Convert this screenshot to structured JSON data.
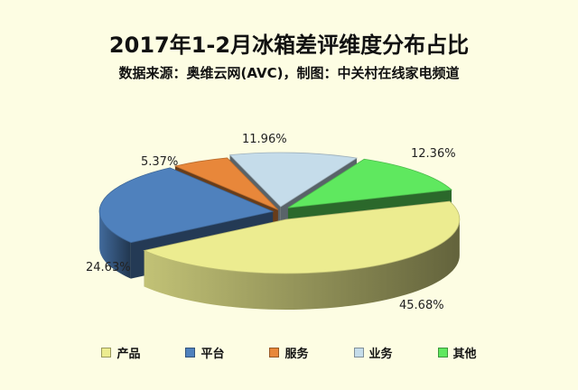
{
  "chart_data": {
    "type": "pie",
    "title": "2017年1-2月冰箱差评维度分布占比",
    "subtitle": "数据来源：奥维云网(AVC)，制图：中关村在线家电频道",
    "legend_position": "bottom",
    "slices": [
      {
        "name": "产品",
        "value": 45.68,
        "label": "45.68%",
        "color": "#ecec90"
      },
      {
        "name": "平台",
        "value": 24.63,
        "label": "24.63%",
        "color": "#4f81bd"
      },
      {
        "name": "服务",
        "value": 5.37,
        "label": "5.37%",
        "color": "#e8873a"
      },
      {
        "name": "业务",
        "value": 11.96,
        "label": "11.96%",
        "color": "#c5dcea"
      },
      {
        "name": "其他",
        "value": 12.36,
        "label": "12.36%",
        "color": "#5fe85f"
      }
    ]
  }
}
